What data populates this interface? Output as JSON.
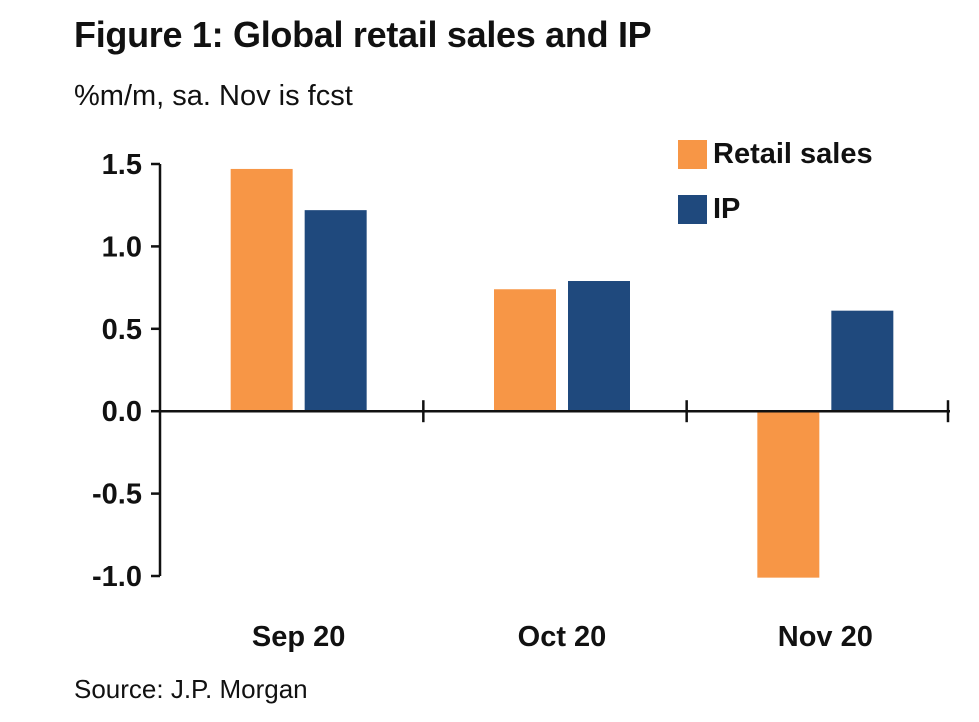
{
  "title": "Figure 1: Global retail sales and IP",
  "subtitle": "%m/m, sa. Nov is fcst",
  "source": "Source: J.P. Morgan",
  "chart_data": {
    "type": "bar",
    "title": "Figure 1: Global retail sales and IP",
    "subtitle": "%m/m, sa. Nov is fcst",
    "categories": [
      "Sep 20",
      "Oct 20",
      "Nov 20"
    ],
    "series": [
      {
        "name": "Retail sales",
        "color": "#F79646",
        "values": [
          1.47,
          0.74,
          -1.01
        ]
      },
      {
        "name": "IP",
        "color": "#1F497D",
        "values": [
          1.22,
          0.79,
          0.61
        ]
      }
    ],
    "ylim": [
      -1.0,
      1.5
    ],
    "yticks": [
      1.5,
      1.0,
      0.5,
      0.0,
      -0.5,
      -1.0
    ],
    "ytick_labels": [
      "1.5",
      "1.0",
      "0.5",
      "0.0",
      "-0.5",
      "-1.0"
    ],
    "grid": false,
    "legend": "top-right"
  }
}
